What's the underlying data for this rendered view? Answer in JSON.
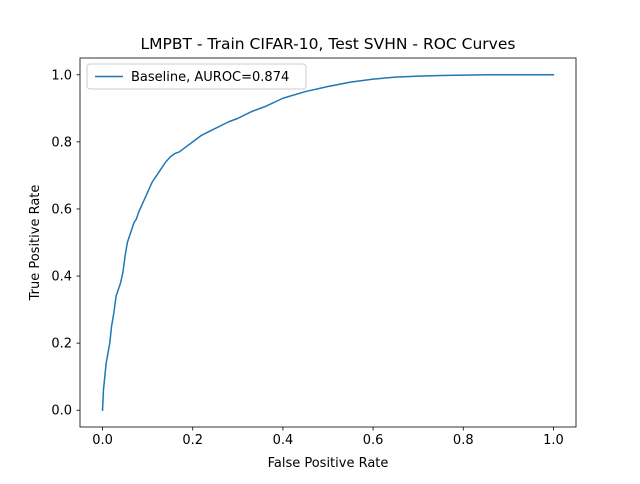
{
  "chart_data": {
    "type": "line",
    "title": "LMPBT - Train CIFAR-10, Test SVHN - ROC Curves",
    "xlabel": "False Positive Rate",
    "ylabel": "True Positive Rate",
    "xlim": [
      -0.05,
      1.05
    ],
    "ylim": [
      -0.05,
      1.05
    ],
    "xticks": [
      0.0,
      0.2,
      0.4,
      0.6,
      0.8,
      1.0
    ],
    "yticks": [
      0.0,
      0.2,
      0.4,
      0.6,
      0.8,
      1.0
    ],
    "xtick_labels": [
      "0.0",
      "0.2",
      "0.4",
      "0.6",
      "0.8",
      "1.0"
    ],
    "ytick_labels": [
      "0.0",
      "0.2",
      "0.4",
      "0.6",
      "0.8",
      "1.0"
    ],
    "grid": false,
    "legend_position": "top-left",
    "series": [
      {
        "name": "Baseline, AUROC=0.874",
        "color": "#1f77b4",
        "x": [
          0.0,
          0.002,
          0.005,
          0.008,
          0.012,
          0.016,
          0.02,
          0.025,
          0.03,
          0.035,
          0.04,
          0.045,
          0.05,
          0.055,
          0.06,
          0.065,
          0.07,
          0.075,
          0.08,
          0.09,
          0.1,
          0.11,
          0.12,
          0.13,
          0.14,
          0.15,
          0.16,
          0.17,
          0.18,
          0.2,
          0.22,
          0.25,
          0.28,
          0.3,
          0.33,
          0.36,
          0.4,
          0.45,
          0.5,
          0.55,
          0.6,
          0.65,
          0.7,
          0.75,
          0.8,
          0.85,
          0.9,
          0.95,
          1.0
        ],
        "y": [
          0.0,
          0.06,
          0.1,
          0.14,
          0.17,
          0.2,
          0.25,
          0.29,
          0.34,
          0.36,
          0.38,
          0.41,
          0.46,
          0.5,
          0.52,
          0.54,
          0.56,
          0.57,
          0.59,
          0.62,
          0.65,
          0.68,
          0.7,
          0.72,
          0.74,
          0.755,
          0.765,
          0.77,
          0.78,
          0.8,
          0.82,
          0.84,
          0.86,
          0.87,
          0.89,
          0.905,
          0.93,
          0.95,
          0.965,
          0.978,
          0.987,
          0.993,
          0.996,
          0.998,
          0.999,
          1.0,
          1.0,
          1.0,
          1.0
        ]
      }
    ]
  }
}
